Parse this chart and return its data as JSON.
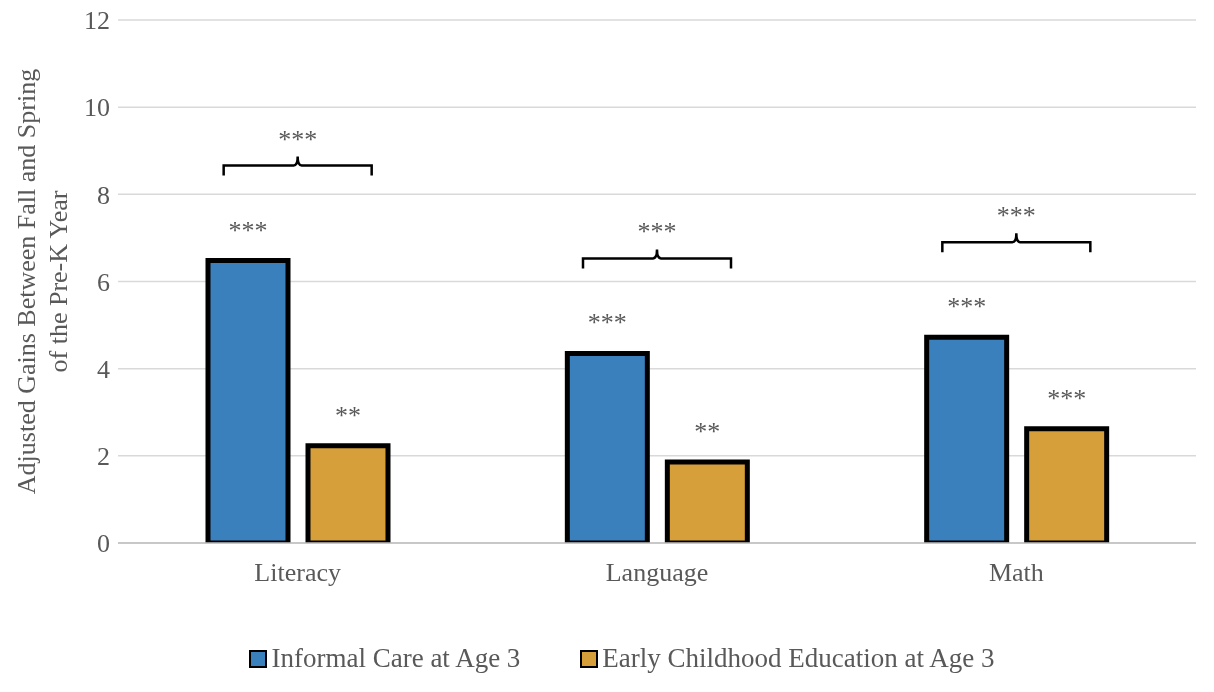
{
  "chart_data": {
    "type": "bar",
    "ylabel": "Adjusted Gains Between Fall and Spring\nof the Pre-K Year",
    "categories": [
      "Literacy",
      "Language",
      "Math"
    ],
    "series": [
      {
        "name": "Informal Care at Age 3",
        "color": "#3a80bc",
        "values": [
          6.48,
          4.35,
          4.72
        ],
        "value_labels": [
          "***",
          "***",
          "***"
        ]
      },
      {
        "name": "Early Childhood Education at Age 3",
        "color": "#d69f3a",
        "values": [
          2.23,
          1.86,
          2.62
        ],
        "value_labels": [
          "**",
          "**",
          "***"
        ]
      }
    ],
    "ylim": [
      0,
      12
    ],
    "yticks": [
      0,
      2,
      4,
      6,
      8,
      10,
      12
    ],
    "grid": "y",
    "legend": "bottom",
    "annotations": [
      "***",
      "***",
      "***"
    ]
  }
}
